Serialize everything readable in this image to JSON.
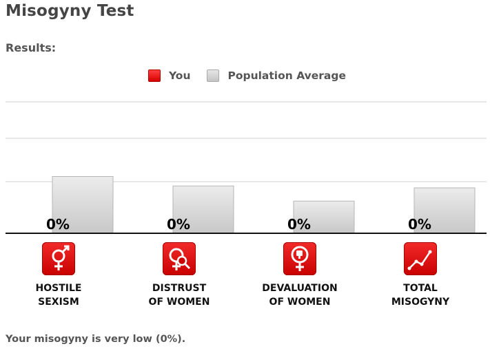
{
  "page": {
    "title": "Misogyny Test",
    "results_heading": "Results:"
  },
  "legend": {
    "you": "You",
    "population": "Population Average"
  },
  "chart_data": {
    "type": "bar",
    "categories": [
      "HOSTILE SEXISM",
      "DISTRUST OF WOMEN",
      "DEVALUATION OF WOMEN",
      "TOTAL MISOGYNY"
    ],
    "series": [
      {
        "name": "You",
        "values": [
          0,
          0,
          0,
          0
        ]
      },
      {
        "name": "Population Average",
        "values": [
          30,
          25,
          17,
          24
        ]
      }
    ],
    "data_labels": [
      "0%",
      "0%",
      "0%",
      "0%"
    ],
    "ylim": [
      0,
      100
    ],
    "grid": true,
    "colors": {
      "you": "#e00000",
      "population": "#d0d0d0"
    }
  },
  "categories": [
    {
      "line1": "HOSTILE",
      "line2": "SEXISM",
      "icon": "gender-symbols-icon"
    },
    {
      "line1": "DISTRUST",
      "line2": "OF WOMEN",
      "icon": "female-magnifier-icon"
    },
    {
      "line1": "DEVALUATION",
      "line2": "OF WOMEN",
      "icon": "female-thumbs-down-icon"
    },
    {
      "line1": "TOTAL",
      "line2": "MISOGYNY",
      "icon": "line-graph-icon"
    }
  ],
  "result_text": "Your misogyny is very low (0%)."
}
